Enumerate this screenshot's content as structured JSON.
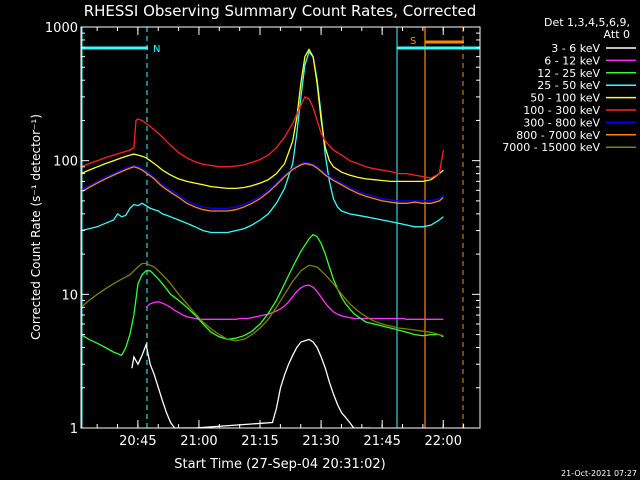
{
  "chart_data": {
    "type": "line",
    "title": "RHESSI Observing Summary Count Rates, Corrected",
    "xlabel": "Start Time (27-Sep-04 20:31:02)",
    "ylabel": "Corrected Count Rate (s⁻¹ detector⁻¹)",
    "yscale": "log",
    "ylim": [
      1,
      1000
    ],
    "xlim_minutes": [
      0,
      98
    ],
    "ytick_values": [
      1,
      10,
      100,
      1000
    ],
    "ytick_labels": [
      "1",
      "10",
      "100",
      "1000"
    ],
    "xtick_values": [
      13.97,
      28.97,
      43.97,
      58.97,
      73.97,
      88.97
    ],
    "xtick_labels": [
      "20:45",
      "21:00",
      "21:15",
      "21:30",
      "21:45",
      "22:00"
    ],
    "grid": false,
    "legend_title": [
      "Det 1,3,4,5,6,9,",
      "Att 0"
    ],
    "legend_position": "right",
    "footer": "21-Oct-2021 07:27",
    "series": [
      {
        "name": "3 - 6 keV",
        "color": "#ffffff",
        "x": [
          12.5,
          13,
          14,
          15,
          16,
          17,
          18,
          19,
          20,
          21,
          22,
          23,
          24,
          25,
          26,
          27,
          28,
          47,
          48,
          49,
          50,
          51,
          52,
          53,
          54,
          55,
          56,
          57,
          58,
          59,
          60,
          61,
          62,
          63,
          64,
          65,
          66,
          67,
          68,
          69,
          70,
          71
        ],
        "y": [
          2.8,
          3.4,
          3.0,
          3.5,
          4.2,
          3.0,
          2.5,
          2.0,
          1.6,
          1.3,
          1.1,
          1.0,
          1.0,
          1.0,
          1.0,
          1.0,
          1.0,
          1.1,
          1.4,
          2.0,
          2.5,
          3.0,
          3.5,
          4.0,
          4.4,
          4.5,
          4.6,
          4.4,
          4.0,
          3.4,
          2.8,
          2.2,
          1.8,
          1.5,
          1.3,
          1.2,
          1.1,
          1.0,
          1.0,
          1.0,
          1.0,
          1.0
        ]
      },
      {
        "name": "6 - 12 keV",
        "color": "#ff33ff",
        "x": [
          16,
          17,
          18,
          19,
          20,
          21,
          22,
          23,
          24,
          25,
          26,
          27,
          28,
          29,
          30,
          31,
          32,
          33,
          34,
          35,
          36,
          37,
          38,
          39,
          40,
          41,
          42,
          43,
          44,
          45,
          46,
          47,
          48,
          49,
          50,
          51,
          52,
          53,
          54,
          55,
          56,
          57,
          58,
          59,
          60,
          61,
          62,
          63,
          64,
          65,
          66,
          67,
          68,
          69,
          70,
          71,
          72,
          73,
          74,
          75,
          76,
          77,
          78,
          79,
          80,
          81,
          82,
          83,
          84,
          85,
          86,
          87,
          88,
          89
        ],
        "y": [
          8,
          8.5,
          8.7,
          8.8,
          8.6,
          8.3,
          8.0,
          7.6,
          7.3,
          7.0,
          6.8,
          6.7,
          6.6,
          6.5,
          6.5,
          6.5,
          6.5,
          6.5,
          6.5,
          6.5,
          6.5,
          6.5,
          6.5,
          6.6,
          6.6,
          6.6,
          6.7,
          6.8,
          6.9,
          7.0,
          7.1,
          7.3,
          7.5,
          7.8,
          8.2,
          8.8,
          9.6,
          10.5,
          11.2,
          11.6,
          11.7,
          11.3,
          10.5,
          9.5,
          8.6,
          7.9,
          7.4,
          7.1,
          6.9,
          6.8,
          6.7,
          6.6,
          6.6,
          6.6,
          6.6,
          6.6,
          6.6,
          6.6,
          6.6,
          6.6,
          6.6,
          6.6,
          6.6,
          6.6,
          6.5,
          6.5,
          6.5,
          6.5,
          6.5,
          6.5,
          6.5,
          6.5,
          6.5,
          6.5
        ]
      },
      {
        "name": "12 - 25 keV",
        "color": "#33ff33",
        "x": [
          0,
          2,
          4,
          6,
          8,
          10,
          11,
          12,
          13,
          14,
          15,
          16,
          17,
          18,
          19,
          20,
          21,
          22,
          23,
          24,
          25,
          26,
          28,
          30,
          32,
          34,
          36,
          38,
          40,
          42,
          44,
          46,
          48,
          50,
          52,
          54,
          56,
          57,
          58,
          59,
          60,
          61,
          62,
          63,
          64,
          65,
          66,
          67,
          68,
          70,
          72,
          74,
          76,
          78,
          80,
          82,
          84,
          86,
          88,
          89
        ],
        "y": [
          5.0,
          4.6,
          4.3,
          4.0,
          3.7,
          3.5,
          4.0,
          5.0,
          7.0,
          12,
          14,
          15,
          15,
          14,
          13,
          12,
          11,
          10,
          9.5,
          9.0,
          8.5,
          8.0,
          7.0,
          6.0,
          5.2,
          4.8,
          4.6,
          4.7,
          4.9,
          5.3,
          6.0,
          7.2,
          9.0,
          12,
          16,
          21,
          26,
          28,
          27,
          24,
          20,
          16,
          13,
          11,
          9.5,
          8.5,
          7.8,
          7.2,
          6.8,
          6.2,
          6.0,
          5.8,
          5.6,
          5.4,
          5.2,
          5.0,
          4.9,
          5.0,
          5.0,
          4.8
        ]
      },
      {
        "name": "25 - 50 keV",
        "color": "#33ffff",
        "x": [
          0,
          2,
          4,
          6,
          8,
          9,
          10,
          11,
          12,
          13,
          14,
          15,
          16,
          17,
          18,
          19,
          20,
          21,
          22,
          23,
          24,
          25,
          26,
          27,
          28,
          29,
          30,
          32,
          34,
          36,
          38,
          40,
          42,
          44,
          46,
          48,
          50,
          52,
          53,
          54,
          55,
          56,
          57,
          58,
          59,
          60,
          61,
          62,
          63,
          64,
          66,
          68,
          70,
          72,
          74,
          76,
          78,
          80,
          82,
          84,
          86,
          88,
          89
        ],
        "y": [
          30,
          31,
          32,
          34,
          36,
          40,
          38,
          39,
          44,
          47,
          46,
          48,
          46,
          44,
          43,
          42,
          40,
          39,
          38,
          37,
          36,
          35,
          34,
          33,
          32,
          31,
          30,
          29,
          29,
          29,
          30,
          31,
          33,
          36,
          40,
          48,
          62,
          95,
          160,
          300,
          520,
          650,
          600,
          400,
          220,
          110,
          70,
          52,
          45,
          42,
          40,
          39,
          38,
          37,
          36,
          35,
          34,
          33,
          32,
          32,
          33,
          36,
          38
        ]
      },
      {
        "name": "50 - 100 keV",
        "color": "#ffff33",
        "x": [
          0,
          2,
          4,
          6,
          8,
          10,
          12,
          13,
          14,
          15,
          16,
          17,
          18,
          19,
          20,
          22,
          24,
          26,
          28,
          30,
          32,
          34,
          36,
          38,
          40,
          42,
          44,
          46,
          48,
          50,
          52,
          53,
          54,
          55,
          56,
          57,
          58,
          59,
          60,
          61,
          62,
          64,
          66,
          68,
          70,
          72,
          74,
          76,
          78,
          80,
          82,
          84,
          86,
          88,
          89
        ],
        "y": [
          80,
          85,
          90,
          95,
          100,
          105,
          110,
          112,
          110,
          108,
          105,
          100,
          95,
          90,
          85,
          78,
          73,
          70,
          68,
          66,
          64,
          63,
          62,
          62,
          63,
          65,
          68,
          72,
          80,
          95,
          140,
          210,
          380,
          600,
          680,
          600,
          380,
          200,
          125,
          100,
          90,
          82,
          78,
          75,
          73,
          72,
          71,
          70,
          70,
          70,
          70,
          70,
          72,
          80,
          85
        ]
      },
      {
        "name": "100 - 300 keV",
        "color": "#ff2222",
        "x": [
          0,
          2,
          4,
          6,
          8,
          10,
          12,
          13,
          13.5,
          14,
          15,
          16,
          17,
          18,
          19,
          20,
          22,
          24,
          26,
          28,
          30,
          32,
          34,
          36,
          38,
          40,
          42,
          44,
          46,
          48,
          50,
          52,
          54,
          55,
          56,
          57,
          58,
          59,
          60,
          62,
          64,
          66,
          68,
          70,
          72,
          74,
          76,
          78,
          80,
          82,
          84,
          86,
          88,
          89
        ],
        "y": [
          90,
          95,
          100,
          105,
          110,
          115,
          120,
          125,
          200,
          205,
          200,
          190,
          180,
          170,
          160,
          150,
          130,
          115,
          105,
          98,
          94,
          92,
          90,
          90,
          91,
          93,
          97,
          102,
          110,
          125,
          150,
          190,
          260,
          300,
          290,
          250,
          200,
          160,
          140,
          120,
          110,
          100,
          95,
          90,
          87,
          85,
          83,
          80,
          80,
          78,
          76,
          74,
          80,
          120
        ]
      },
      {
        "name": "300 - 800 keV",
        "color": "#0000ff",
        "x": [
          0,
          2,
          4,
          6,
          8,
          10,
          12,
          13,
          14,
          15,
          16,
          17,
          18,
          19,
          20,
          22,
          24,
          26,
          28,
          30,
          32,
          34,
          36,
          38,
          40,
          42,
          44,
          46,
          48,
          50,
          52,
          54,
          55,
          56,
          57,
          58,
          59,
          60,
          62,
          64,
          66,
          68,
          70,
          72,
          74,
          76,
          78,
          80,
          82,
          84,
          86,
          88,
          89
        ],
        "y": [
          60,
          65,
          70,
          75,
          80,
          85,
          90,
          92,
          90,
          87,
          83,
          79,
          75,
          70,
          66,
          60,
          55,
          50,
          47,
          45,
          44,
          44,
          44,
          45,
          47,
          50,
          54,
          60,
          68,
          78,
          88,
          95,
          97,
          96,
          94,
          90,
          85,
          80,
          73,
          68,
          63,
          59,
          56,
          54,
          52,
          51,
          50,
          50,
          50,
          50,
          50,
          52,
          55
        ]
      },
      {
        "name": "800 - 7000 keV",
        "color": "#ff8800",
        "x": [
          0,
          2,
          4,
          6,
          8,
          10,
          12,
          13,
          14,
          15,
          16,
          17,
          18,
          19,
          20,
          22,
          24,
          26,
          28,
          30,
          32,
          34,
          36,
          38,
          40,
          42,
          44,
          46,
          48,
          50,
          52,
          54,
          55,
          56,
          57,
          58,
          59,
          60,
          62,
          64,
          66,
          68,
          70,
          72,
          74,
          76,
          78,
          80,
          82,
          84,
          86,
          88,
          89
        ],
        "y": [
          58,
          63,
          68,
          73,
          78,
          83,
          88,
          90,
          88,
          85,
          81,
          77,
          73,
          68,
          64,
          58,
          53,
          48,
          45,
          43,
          42,
          42,
          42,
          43,
          45,
          48,
          52,
          58,
          66,
          76,
          86,
          93,
          95,
          94,
          92,
          88,
          83,
          78,
          71,
          66,
          61,
          57,
          54,
          52,
          50,
          49,
          48,
          48,
          49,
          48,
          48,
          50,
          53
        ]
      },
      {
        "name": "7000 - 15000 keV",
        "color": "#808000",
        "x": [
          0,
          2,
          4,
          6,
          8,
          10,
          12,
          13,
          14,
          15,
          16,
          17,
          18,
          19,
          20,
          21,
          22,
          24,
          26,
          28,
          30,
          32,
          34,
          36,
          38,
          40,
          42,
          44,
          46,
          48,
          50,
          52,
          54,
          56,
          58,
          60,
          62,
          64,
          66,
          68,
          70,
          72,
          74,
          76,
          78,
          80,
          82,
          84,
          86,
          88,
          89
        ],
        "y": [
          8,
          9,
          10,
          11,
          12,
          13,
          14,
          15,
          16,
          17,
          17,
          16.5,
          16,
          15,
          14,
          13,
          12,
          10,
          8.5,
          7.2,
          6.2,
          5.5,
          5.0,
          4.6,
          4.5,
          4.6,
          5.0,
          5.6,
          6.5,
          8.0,
          10,
          12.5,
          15,
          16.5,
          16,
          14,
          12,
          10,
          8.5,
          7.5,
          6.8,
          6.3,
          6.0,
          5.8,
          5.6,
          5.5,
          5.4,
          5.3,
          5.2,
          5.0,
          4.9
        ]
      }
    ],
    "annotations": [
      {
        "text": "N",
        "color": "#33ffff"
      },
      {
        "text": "S",
        "color": "#ff8800"
      }
    ]
  }
}
